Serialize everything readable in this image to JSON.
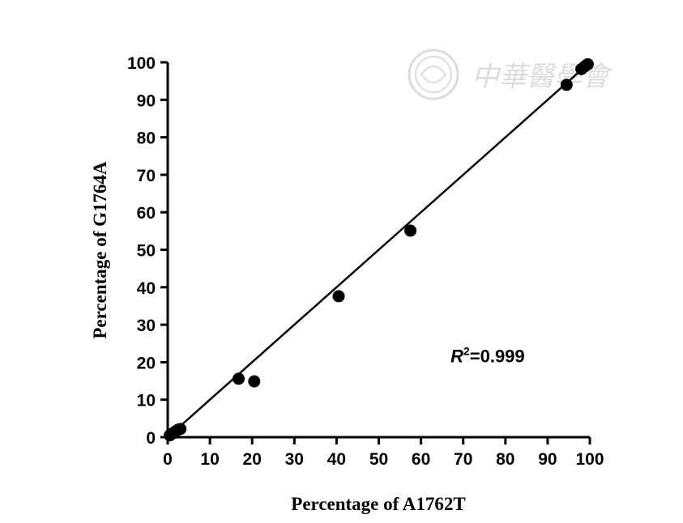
{
  "watermark": {
    "text": "中華醫學會",
    "color": "#dcdcdc"
  },
  "chart_data": {
    "type": "scatter",
    "xlabel": "Percentage of A1762T",
    "ylabel": "Percentage of G1764A",
    "xlim": [
      0,
      100
    ],
    "ylim": [
      0,
      100
    ],
    "xticks": [
      0,
      10,
      20,
      30,
      40,
      50,
      60,
      70,
      80,
      90,
      100
    ],
    "yticks": [
      0,
      10,
      20,
      30,
      40,
      50,
      60,
      70,
      80,
      90,
      100
    ],
    "grid": false,
    "legend": "none",
    "points": [
      {
        "x": 0.5,
        "y": 0.5
      },
      {
        "x": 1.2,
        "y": 1.0
      },
      {
        "x": 1.8,
        "y": 1.5
      },
      {
        "x": 2.5,
        "y": 2.0
      },
      {
        "x": 3.0,
        "y": 2.2
      },
      {
        "x": 16.8,
        "y": 15.6
      },
      {
        "x": 20.5,
        "y": 14.9
      },
      {
        "x": 40.5,
        "y": 37.6
      },
      {
        "x": 57.5,
        "y": 55.1
      },
      {
        "x": 94.5,
        "y": 94.0
      },
      {
        "x": 98.0,
        "y": 98.2
      },
      {
        "x": 98.8,
        "y": 98.9
      },
      {
        "x": 99.5,
        "y": 99.5
      }
    ],
    "fit_line": {
      "x": [
        0,
        99
      ],
      "y": [
        -1,
        99
      ]
    },
    "annotation": {
      "symbol": "R",
      "superscript": "2",
      "text": "=0.999",
      "x": 67,
      "y": 20
    }
  }
}
